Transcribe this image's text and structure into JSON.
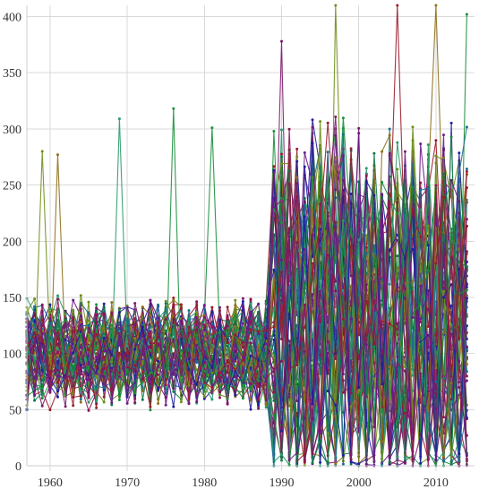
{
  "chart_data": {
    "type": "line",
    "title": "",
    "xlabel": "",
    "ylabel": "",
    "xlim": [
      1957,
      2015
    ],
    "ylim": [
      0,
      410
    ],
    "x_ticks": [
      1960,
      1970,
      1980,
      1990,
      2000,
      2010
    ],
    "y_ticks": [
      0,
      50,
      100,
      150,
      200,
      250,
      300,
      350,
      400
    ],
    "grid": true,
    "legend": "none",
    "markers": true,
    "palette": [
      "#1f1f9e",
      "#1a8f3a",
      "#8e1456",
      "#9a1b2b",
      "#6b1a8a",
      "#2a9a6b",
      "#6f8f1a",
      "#1a6f8f",
      "#8f6f1a",
      "#0f7a4a",
      "#7a1a6a"
    ],
    "series_count": 60,
    "series_generation": {
      "base_level_early": 100,
      "base_level_late": 150,
      "noise_early": 40,
      "noise_late": 130,
      "shift_year": 1989
    },
    "highlight_peaks": [
      {
        "x": 1959,
        "y": 280
      },
      {
        "x": 1961,
        "y": 277
      },
      {
        "x": 1969,
        "y": 309
      },
      {
        "x": 1976,
        "y": 318
      },
      {
        "x": 1981,
        "y": 301
      },
      {
        "x": 1990,
        "y": 378
      },
      {
        "x": 1997,
        "y": 410
      },
      {
        "x": 2005,
        "y": 410
      },
      {
        "x": 2010,
        "y": 410
      },
      {
        "x": 2014,
        "y": 402
      }
    ]
  }
}
